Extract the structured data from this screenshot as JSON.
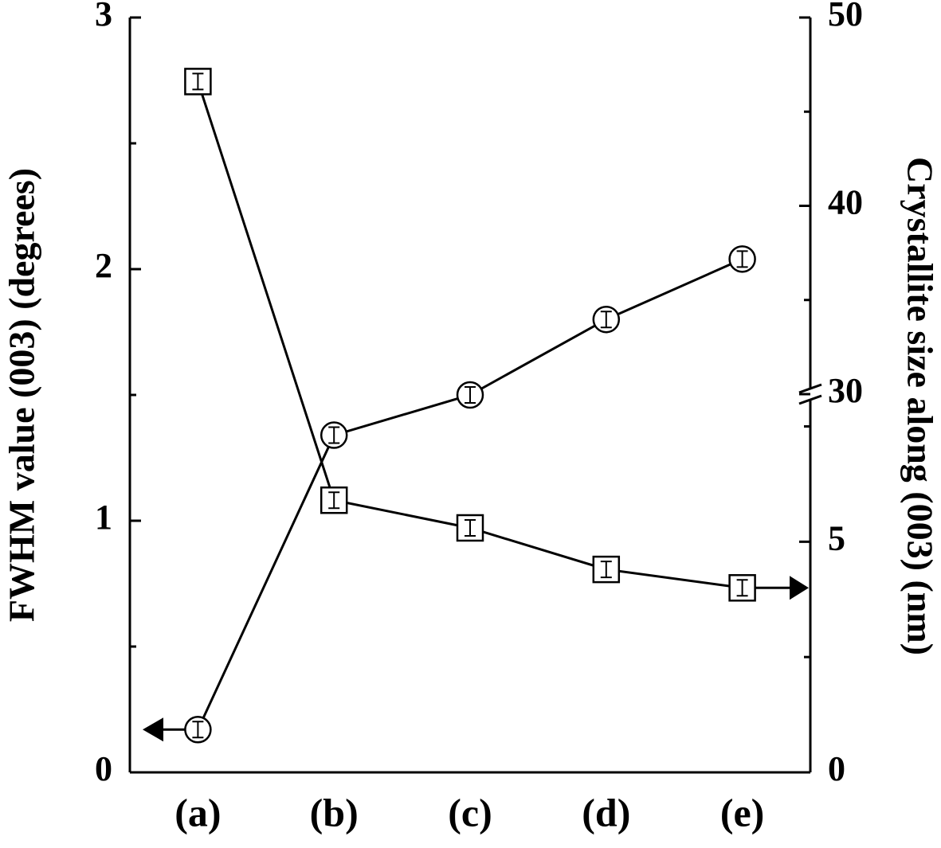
{
  "chart_data": {
    "type": "line",
    "categories": [
      "(a)",
      "(b)",
      "(c)",
      "(d)",
      "(e)"
    ],
    "ylabel": "FWHM value (003) (degrees)",
    "y2label": "Crystallite size along (003) (nm)",
    "ylim": [
      0,
      3
    ],
    "yticks": [
      0,
      1,
      2,
      3
    ],
    "yticks_minor": [
      0.5,
      1.5,
      2.5
    ],
    "y2_segments": [
      {
        "lim": [
          0,
          8.2
        ],
        "ticks": [
          0,
          5
        ],
        "ticks_minor": [
          2.5,
          7.5
        ]
      },
      {
        "lim": [
          30,
          50
        ],
        "ticks": [
          30,
          40,
          50
        ],
        "ticks_minor": [
          35,
          45
        ]
      }
    ],
    "series": [
      {
        "marker": "circle",
        "color": "#000000",
        "values": [
          0.17,
          1.34,
          1.5,
          1.8,
          2.04
        ]
      },
      {
        "marker": "square",
        "color": "#000000",
        "axis": "y2",
        "values": [
          46.6,
          5.9,
          5.3,
          4.4,
          4.0
        ]
      }
    ]
  }
}
